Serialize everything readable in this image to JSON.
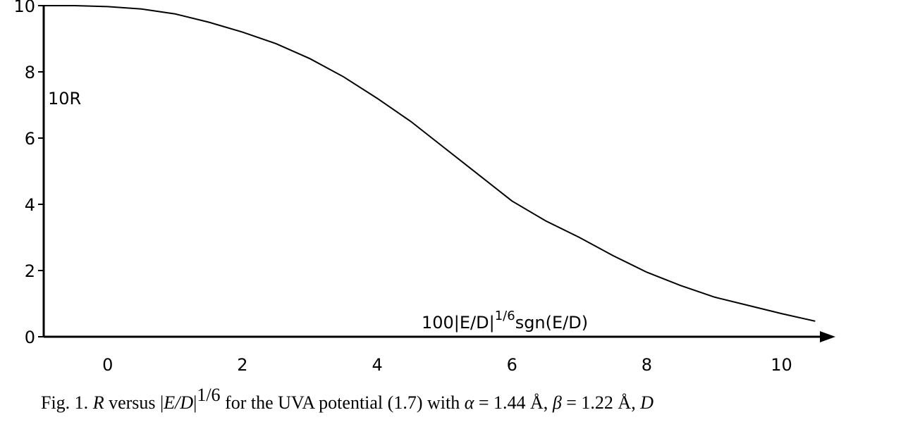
{
  "chart_data": {
    "type": "line",
    "ylabel": "10R",
    "xlabel": [
      "100|E/D|",
      "1/6",
      "sgn(E/D)"
    ],
    "caption": [
      {
        "text": "Fig. 1. "
      },
      {
        "text": "R",
        "italic": true
      },
      {
        "text": " versus |"
      },
      {
        "text": "E/D",
        "italic": true
      },
      {
        "text": "|"
      },
      {
        "text": "1/6",
        "superscript": true
      },
      {
        "text": " for the UVA potential (1.7) with "
      },
      {
        "text": "α",
        "italic": true
      },
      {
        "text": " = 1.44 Å, "
      },
      {
        "text": "β",
        "italic": true
      },
      {
        "text": " = 1.22 Å, "
      },
      {
        "text": "D",
        "italic": true
      }
    ],
    "x": [
      -0.95,
      -0.5,
      0,
      0.5,
      1,
      1.5,
      2,
      2.5,
      3,
      3.5,
      4,
      4.5,
      5,
      5.5,
      6,
      6.5,
      7,
      7.5,
      8,
      8.5,
      9,
      9.5,
      10,
      10.5
    ],
    "values": [
      10,
      10,
      9.97,
      9.9,
      9.75,
      9.5,
      9.2,
      8.85,
      8.4,
      7.85,
      7.2,
      6.5,
      5.7,
      4.9,
      4.1,
      3.5,
      3.0,
      2.45,
      1.95,
      1.55,
      1.2,
      0.95,
      0.7,
      0.47
    ],
    "color": "#000000",
    "xlim": [
      -0.95,
      10.8
    ],
    "xticks": [
      0,
      2,
      4,
      6,
      8,
      10
    ],
    "ylim": [
      0,
      10
    ],
    "yticks": [
      0,
      2,
      4,
      6,
      8,
      10
    ]
  }
}
